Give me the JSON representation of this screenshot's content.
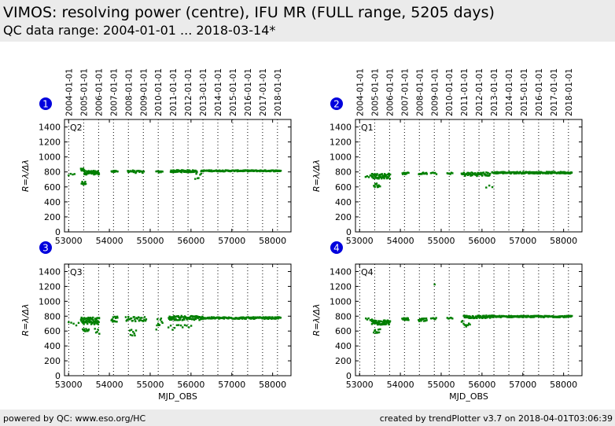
{
  "header": {
    "title": "VIMOS: resolving power (centre), IFU MR (FULL range, 5205 days)",
    "subtitle": "QC data range: 2004-01-01 ... 2018-03-14*"
  },
  "footer": {
    "left": "powered by QC: www.eso.org/HC",
    "right": "created by trendPlotter v3.7 on 2018-04-01T03:06:39"
  },
  "colors": {
    "data": "#007f00",
    "badge": "#0000dd",
    "header_bg": "#ebebeb"
  },
  "chart_data": {
    "type": "scatter",
    "xlabel": "MJD_OBS",
    "ylabel": "R=λ/Δλ",
    "xlim": [
      52900,
      58450
    ],
    "ylim": [
      0,
      1500
    ],
    "xticks": [
      53000,
      54000,
      55000,
      56000,
      57000,
      58000
    ],
    "yticks": [
      0,
      200,
      400,
      600,
      800,
      1000,
      1200,
      1400
    ],
    "year_marks": [
      {
        "label": "2004-01-01",
        "mjd": 53005
      },
      {
        "label": "2005-01-01",
        "mjd": 53371
      },
      {
        "label": "2006-01-01",
        "mjd": 53736
      },
      {
        "label": "2007-01-01",
        "mjd": 54101
      },
      {
        "label": "2008-01-01",
        "mjd": 54466
      },
      {
        "label": "2009-01-01",
        "mjd": 54832
      },
      {
        "label": "2010-01-01",
        "mjd": 55197
      },
      {
        "label": "2011-01-01",
        "mjd": 55562
      },
      {
        "label": "2012-01-01",
        "mjd": 55927
      },
      {
        "label": "2013-01-01",
        "mjd": 56293
      },
      {
        "label": "2014-01-01",
        "mjd": 56658
      },
      {
        "label": "2015-01-01",
        "mjd": 57023
      },
      {
        "label": "2016-01-01",
        "mjd": 57388
      },
      {
        "label": "2017-01-01",
        "mjd": 57754
      },
      {
        "label": "2018-01-01",
        "mjd": 58119
      }
    ],
    "panels": [
      {
        "badge": "1",
        "name": "Q2",
        "segments": [
          {
            "x0": 53000,
            "x1": 53150,
            "y": 760,
            "spread": 15,
            "n": 4
          },
          {
            "x0": 53300,
            "x1": 53380,
            "y": 830,
            "spread": 20,
            "n": 8
          },
          {
            "x0": 53320,
            "x1": 53420,
            "y": 650,
            "spread": 25,
            "n": 10
          },
          {
            "x0": 53380,
            "x1": 53750,
            "y": 790,
            "spread": 25,
            "n": 60
          },
          {
            "x0": 54050,
            "x1": 54200,
            "y": 805,
            "spread": 10,
            "n": 12
          },
          {
            "x0": 54450,
            "x1": 54600,
            "y": 810,
            "spread": 12,
            "n": 12
          },
          {
            "x0": 54600,
            "x1": 54850,
            "y": 800,
            "spread": 15,
            "n": 14
          },
          {
            "x0": 55150,
            "x1": 55300,
            "y": 800,
            "spread": 10,
            "n": 8
          },
          {
            "x0": 55500,
            "x1": 56150,
            "y": 810,
            "spread": 15,
            "n": 70
          },
          {
            "x0": 56100,
            "x1": 56250,
            "y": 740,
            "spread": 40,
            "n": 6
          },
          {
            "x0": 56250,
            "x1": 58200,
            "y": 815,
            "spread": 8,
            "n": 160
          }
        ]
      },
      {
        "badge": "2",
        "name": "Q1",
        "segments": [
          {
            "x0": 53150,
            "x1": 53300,
            "y": 740,
            "spread": 15,
            "n": 5
          },
          {
            "x0": 53300,
            "x1": 53750,
            "y": 745,
            "spread": 35,
            "n": 60
          },
          {
            "x0": 53350,
            "x1": 53500,
            "y": 620,
            "spread": 30,
            "n": 12
          },
          {
            "x0": 54050,
            "x1": 54200,
            "y": 780,
            "spread": 12,
            "n": 12
          },
          {
            "x0": 54450,
            "x1": 54650,
            "y": 780,
            "spread": 12,
            "n": 12
          },
          {
            "x0": 54750,
            "x1": 54880,
            "y": 780,
            "spread": 12,
            "n": 6
          },
          {
            "x0": 55150,
            "x1": 55280,
            "y": 780,
            "spread": 10,
            "n": 6
          },
          {
            "x0": 55500,
            "x1": 56200,
            "y": 770,
            "spread": 25,
            "n": 60
          },
          {
            "x0": 56100,
            "x1": 56250,
            "y": 600,
            "spread": 20,
            "n": 3
          },
          {
            "x0": 56250,
            "x1": 58200,
            "y": 790,
            "spread": 12,
            "n": 150
          }
        ]
      },
      {
        "badge": "3",
        "name": "Q3",
        "segments": [
          {
            "x0": 53000,
            "x1": 53250,
            "y": 700,
            "spread": 25,
            "n": 5
          },
          {
            "x0": 53300,
            "x1": 53750,
            "y": 740,
            "spread": 50,
            "n": 70
          },
          {
            "x0": 53350,
            "x1": 53500,
            "y": 615,
            "spread": 20,
            "n": 10
          },
          {
            "x0": 53650,
            "x1": 53750,
            "y": 600,
            "spread": 40,
            "n": 5
          },
          {
            "x0": 54050,
            "x1": 54200,
            "y": 760,
            "spread": 35,
            "n": 15
          },
          {
            "x0": 54400,
            "x1": 54900,
            "y": 760,
            "spread": 30,
            "n": 30
          },
          {
            "x0": 54500,
            "x1": 54650,
            "y": 580,
            "spread": 40,
            "n": 8
          },
          {
            "x0": 55150,
            "x1": 55300,
            "y": 700,
            "spread": 80,
            "n": 10
          },
          {
            "x0": 55450,
            "x1": 56300,
            "y": 775,
            "spread": 30,
            "n": 80
          },
          {
            "x0": 55450,
            "x1": 56000,
            "y": 650,
            "spread": 40,
            "n": 12
          },
          {
            "x0": 56250,
            "x1": 58200,
            "y": 775,
            "spread": 12,
            "n": 160
          }
        ]
      },
      {
        "badge": "4",
        "name": "Q4",
        "segments": [
          {
            "x0": 53150,
            "x1": 53300,
            "y": 760,
            "spread": 15,
            "n": 5
          },
          {
            "x0": 53300,
            "x1": 53750,
            "y": 715,
            "spread": 30,
            "n": 60
          },
          {
            "x0": 53350,
            "x1": 53500,
            "y": 600,
            "spread": 25,
            "n": 10
          },
          {
            "x0": 54050,
            "x1": 54200,
            "y": 760,
            "spread": 15,
            "n": 12
          },
          {
            "x0": 54450,
            "x1": 54650,
            "y": 745,
            "spread": 25,
            "n": 15
          },
          {
            "x0": 54750,
            "x1": 54880,
            "y": 765,
            "spread": 12,
            "n": 6
          },
          {
            "x0": 54830,
            "x1": 54850,
            "y": 1230,
            "spread": 5,
            "n": 1
          },
          {
            "x0": 55150,
            "x1": 55280,
            "y": 770,
            "spread": 10,
            "n": 6
          },
          {
            "x0": 55500,
            "x1": 55700,
            "y": 700,
            "spread": 40,
            "n": 10
          },
          {
            "x0": 55550,
            "x1": 56250,
            "y": 790,
            "spread": 20,
            "n": 70
          },
          {
            "x0": 56250,
            "x1": 58200,
            "y": 795,
            "spread": 10,
            "n": 160
          }
        ]
      }
    ]
  }
}
